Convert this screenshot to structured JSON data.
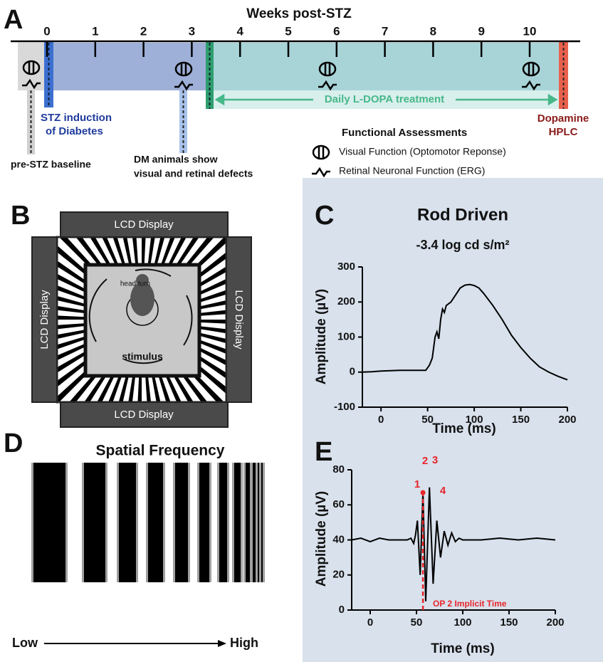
{
  "figure": {
    "A": {
      "label": "A",
      "axis_title": "Weeks post-STZ",
      "weeks": [
        0,
        1,
        2,
        3,
        4,
        5,
        6,
        7,
        8,
        9,
        10
      ],
      "stz": [
        "STZ induction",
        "of Diabetes"
      ],
      "treatment": "Daily L-DOPA treatment",
      "endpoint": [
        "Dopamine",
        "HPLC"
      ],
      "baseline": "pre-STZ baseline",
      "dm": [
        "DM animals show",
        "visual and retinal defects"
      ],
      "legend_title": "Functional Assessments",
      "legend": [
        "Visual Function (Optomotor Reponse)",
        "Retinal Neuronal Function (ERG)"
      ]
    },
    "B": {
      "label": "B",
      "displays": [
        "LCD Display",
        "LCD Display",
        "LCD Display",
        "LCD Display"
      ],
      "head_turn": "head turn",
      "stimulus": "stimulus"
    },
    "C": {
      "label": "C"
    },
    "D": {
      "label": "D",
      "title": "Spatial Frequency",
      "low": "Low",
      "high": "High"
    },
    "E": {
      "label": "E"
    }
  },
  "chart_data": [
    {
      "type": "line",
      "title": "Rod Driven",
      "subtitle": "-3.4 log cd s/m²",
      "x_label": "Time (ms)",
      "y_label": "Amplitude (µV)",
      "x": [
        -20,
        -10,
        0,
        10,
        20,
        30,
        40,
        48,
        52,
        55,
        58,
        60,
        62,
        64,
        66,
        68,
        70,
        75,
        80,
        85,
        90,
        95,
        100,
        105,
        110,
        120,
        130,
        140,
        150,
        160,
        170,
        180,
        190,
        200
      ],
      "values": [
        0,
        1,
        3,
        4,
        5,
        5,
        5,
        5,
        20,
        40,
        100,
        115,
        95,
        150,
        180,
        170,
        190,
        200,
        220,
        240,
        248,
        250,
        247,
        240,
        225,
        190,
        150,
        105,
        70,
        40,
        15,
        0,
        -12,
        -22
      ],
      "color": "#000000",
      "xlim": [
        -20,
        200
      ],
      "xticks": [
        0,
        50,
        100,
        150,
        200
      ],
      "ylim": [
        -100,
        300
      ],
      "yticks": [
        -100,
        0,
        100,
        200,
        300
      ]
    },
    {
      "type": "line",
      "x_label": "Time (ms)",
      "y_label": "Amplitude (µV)",
      "x": [
        -20,
        -10,
        0,
        10,
        20,
        30,
        40,
        44,
        47,
        49,
        51,
        54,
        57,
        60,
        64,
        68,
        72,
        76,
        80,
        84,
        88,
        92,
        96,
        100,
        120,
        140,
        160,
        180,
        200
      ],
      "values": [
        40,
        41,
        39,
        41,
        40,
        40,
        40,
        41,
        38,
        43,
        51,
        20,
        67,
        5,
        70,
        15,
        51,
        30,
        45,
        37,
        44,
        39,
        41,
        40,
        40,
        41,
        40,
        41,
        40
      ],
      "color": "#000000",
      "annotation_color": "#e8252a",
      "marked_x": 57,
      "annotations": [
        "1",
        "2",
        "3",
        "4",
        "OP 2 Implicit Time"
      ],
      "xlim": [
        -20,
        200
      ],
      "xticks": [
        0,
        50,
        100,
        150,
        200
      ],
      "ylim": [
        0,
        80
      ],
      "yticks": [
        0,
        20,
        40,
        60,
        80
      ]
    }
  ]
}
